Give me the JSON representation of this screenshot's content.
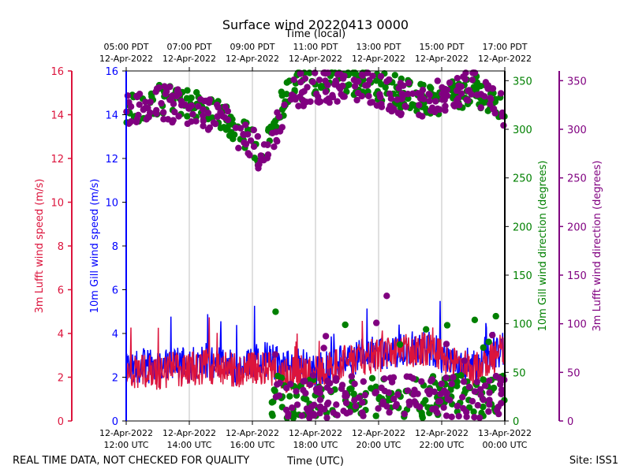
{
  "chart_data": {
    "type": "line+scatter",
    "title": "Surface wind 20220413 0000",
    "xlabel_bottom": "Time (UTC)",
    "xlabel_top": "Time (local)",
    "ylabel_left_outer": "3m Lufft wind speed (m/s)",
    "ylabel_left_inner": "10m Gill wind speed (m/s)",
    "ylabel_right_inner": "10m Gill wind direction (degrees)",
    "ylabel_right_outer": "3m Lufft wind direction (degrees)",
    "footer_left": "REAL TIME DATA, NOT CHECKED FOR QUALITY",
    "footer_right": "Site: ISS1",
    "x_range_hours_utc": [
      12,
      24
    ],
    "speed_ylim": [
      0,
      16
    ],
    "direction_ylim": [
      0,
      360
    ],
    "speed_ticks": [
      "0",
      "2",
      "4",
      "6",
      "8",
      "10",
      "12",
      "14",
      "16"
    ],
    "direction_ticks": [
      "0",
      "50",
      "100",
      "150",
      "200",
      "250",
      "300",
      "350"
    ],
    "bottom_ticks": [
      {
        "hour": 12,
        "line1": "12-Apr-2022",
        "line2": "12:00 UTC"
      },
      {
        "hour": 14,
        "line1": "12-Apr-2022",
        "line2": "14:00 UTC"
      },
      {
        "hour": 16,
        "line1": "12-Apr-2022",
        "line2": "16:00 UTC"
      },
      {
        "hour": 18,
        "line1": "12-Apr-2022",
        "line2": "18:00 UTC"
      },
      {
        "hour": 20,
        "line1": "12-Apr-2022",
        "line2": "20:00 UTC"
      },
      {
        "hour": 22,
        "line1": "12-Apr-2022",
        "line2": "22:00 UTC"
      },
      {
        "hour": 24,
        "line1": "13-Apr-2022",
        "line2": "00:00 UTC"
      }
    ],
    "top_ticks": [
      {
        "hour": 12,
        "line1": "05:00 PDT",
        "line2": "12-Apr-2022"
      },
      {
        "hour": 14,
        "line1": "07:00 PDT",
        "line2": "12-Apr-2022"
      },
      {
        "hour": 16,
        "line1": "09:00 PDT",
        "line2": "12-Apr-2022"
      },
      {
        "hour": 18,
        "line1": "11:00 PDT",
        "line2": "12-Apr-2022"
      },
      {
        "hour": 20,
        "line1": "13:00 PDT",
        "line2": "12-Apr-2022"
      },
      {
        "hour": 22,
        "line1": "15:00 PDT",
        "line2": "12-Apr-2022"
      },
      {
        "hour": 24,
        "line1": "17:00 PDT",
        "line2": "12-Apr-2022"
      }
    ],
    "colors": {
      "gill_speed": "#0000ff",
      "lufft_speed": "#dc143c",
      "gill_direction": "#008000",
      "lufft_direction": "#800080"
    },
    "series": [
      {
        "name": "10m Gill wind speed",
        "axis": "speed",
        "style": "line",
        "color_key": "gill_speed",
        "x": [
          12,
          12.5,
          13,
          13.5,
          14,
          14.5,
          15,
          15.5,
          16,
          16.5,
          17,
          17.5,
          18,
          18.5,
          19,
          19.5,
          20,
          20.5,
          21,
          21.5,
          22,
          22.5,
          23,
          23.5,
          24
        ],
        "y": [
          2.3,
          2.6,
          2.4,
          2.7,
          2.5,
          2.8,
          2.6,
          2.4,
          2.7,
          2.8,
          2.5,
          2.6,
          2.3,
          2.5,
          2.8,
          3.0,
          3.1,
          3.2,
          3.3,
          3.4,
          3.0,
          2.7,
          2.5,
          2.9,
          3.3
        ],
        "noise": 0.8
      },
      {
        "name": "3m Lufft wind speed",
        "axis": "speed",
        "style": "line",
        "color_key": "lufft_speed",
        "x": [
          12,
          12.5,
          13,
          13.5,
          14,
          14.5,
          15,
          15.5,
          16,
          16.5,
          17,
          17.5,
          18,
          18.5,
          19,
          19.5,
          20,
          20.5,
          21,
          21.5,
          22,
          22.5,
          23,
          23.5,
          24
        ],
        "y": [
          2.1,
          2.3,
          2.2,
          2.4,
          2.3,
          2.5,
          2.4,
          2.3,
          2.5,
          2.4,
          2.0,
          2.3,
          2.2,
          2.5,
          2.7,
          2.9,
          3.0,
          3.1,
          3.2,
          3.3,
          2.9,
          2.6,
          2.4,
          2.8,
          3.3
        ],
        "noise": 0.8
      },
      {
        "name": "10m Gill wind direction",
        "axis": "direction",
        "style": "scatter",
        "color_key": "gill_direction",
        "x": [
          12,
          12.5,
          13,
          13.5,
          14,
          14.5,
          15,
          15.5,
          16,
          16.25,
          16.5,
          16.75,
          17,
          17.25,
          17.5,
          18,
          18.5,
          19,
          19.5,
          20,
          20.5,
          21,
          21.5,
          22,
          22.5,
          23,
          23.5,
          24
        ],
        "y": [
          320,
          325,
          330,
          328,
          325,
          322,
          315,
          300,
          285,
          270,
          290,
          310,
          330,
          340,
          345,
          350,
          352,
          350,
          348,
          345,
          340,
          335,
          330,
          330,
          335,
          345,
          330,
          320
        ],
        "noise": 8,
        "low_cluster": {
          "x_range": [
            16.6,
            24
          ],
          "y_center": 25,
          "noise": 22
        }
      },
      {
        "name": "3m Lufft wind direction",
        "axis": "direction",
        "style": "scatter",
        "color_key": "lufft_direction",
        "x": [
          12,
          12.5,
          13,
          13.5,
          14,
          14.5,
          15,
          15.5,
          16,
          16.25,
          16.5,
          16.75,
          17,
          17.25,
          17.5,
          18,
          18.5,
          19,
          19.5,
          20,
          20.5,
          21,
          21.5,
          22,
          22.5,
          23,
          23.5,
          24
        ],
        "y": [
          320,
          322,
          328,
          325,
          322,
          318,
          312,
          300,
          285,
          272,
          288,
          300,
          320,
          335,
          340,
          345,
          345,
          340,
          342,
          338,
          332,
          330,
          328,
          335,
          340,
          350,
          330,
          320
        ],
        "noise": 9,
        "low_cluster": {
          "x_range": [
            16.6,
            24
          ],
          "y_center": 25,
          "noise": 22
        }
      }
    ]
  }
}
